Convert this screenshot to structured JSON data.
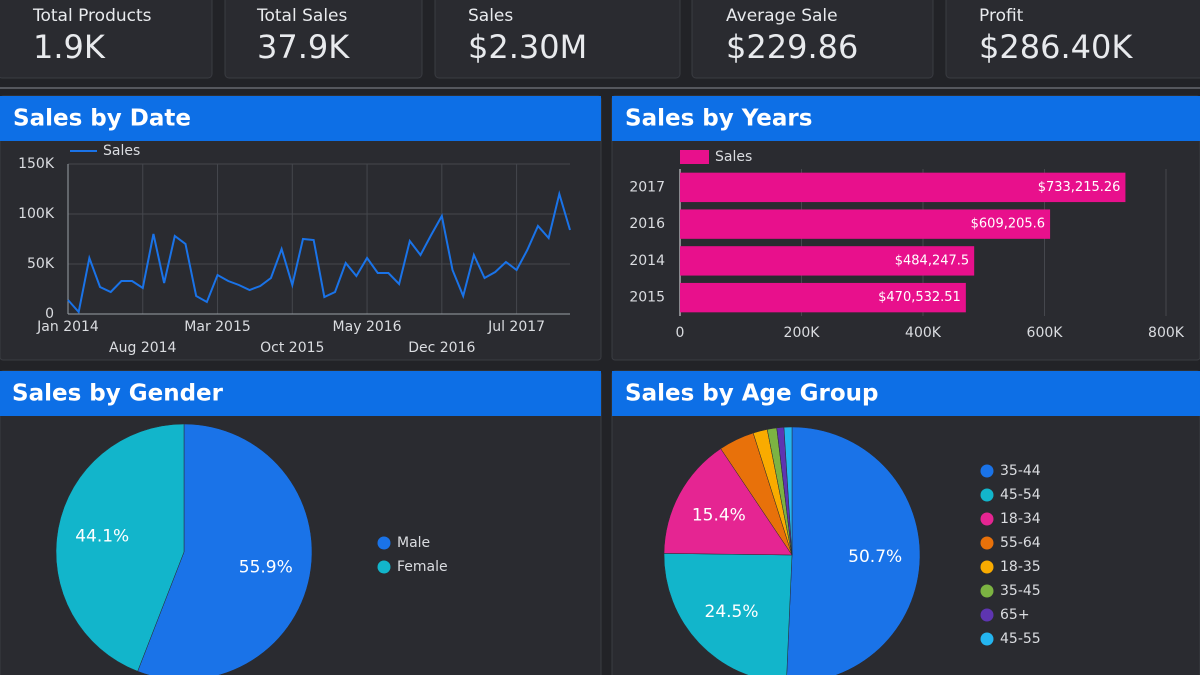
{
  "kpis": [
    {
      "label": "Total Products",
      "value": "1.9K"
    },
    {
      "label": "Total Sales",
      "value": "37.9K"
    },
    {
      "label": "Sales",
      "value": "$2.30M"
    },
    {
      "label": "Average Sale",
      "value": "$229.86"
    },
    {
      "label": "Profit",
      "value": "$286.40K"
    }
  ],
  "chart_data": [
    {
      "type": "line",
      "title": "Sales by Date",
      "categories": [
        "Jan 2014",
        null,
        null,
        null,
        null,
        null,
        null,
        "Aug 2014",
        null,
        null,
        null,
        null,
        null,
        null,
        "Mar 2015",
        null,
        null,
        null,
        null,
        null,
        null,
        "Oct 2015",
        null,
        null,
        null,
        null,
        null,
        null,
        "May 2016",
        null,
        null,
        null,
        null,
        null,
        null,
        "Dec 2016",
        null,
        null,
        null,
        null,
        null,
        null,
        "Jul 2017",
        null,
        null,
        null,
        null,
        null
      ],
      "series": [
        {
          "name": "Sales",
          "color": "#1a73e8",
          "values": [
            14000,
            2000,
            56000,
            27000,
            22000,
            33000,
            33000,
            26000,
            80000,
            31000,
            78000,
            70000,
            18000,
            12000,
            39000,
            33000,
            29000,
            24000,
            28000,
            36000,
            65000,
            29000,
            75000,
            74000,
            17000,
            22000,
            51000,
            38000,
            56000,
            41000,
            41000,
            30000,
            73000,
            59000,
            79000,
            98000,
            44000,
            18000,
            59000,
            36000,
            42000,
            52000,
            44000,
            64000,
            88000,
            76000,
            120000,
            84000
          ]
        }
      ],
      "ylim": [
        0,
        150000
      ],
      "yticks": [
        0,
        {
          "value": 50000,
          "label": "50K"
        },
        {
          "value": 100000,
          "label": "100K"
        },
        {
          "value": 150000,
          "label": "150K"
        }
      ],
      "grid": true,
      "legend": "top"
    },
    {
      "type": "bar",
      "orientation": "horizontal",
      "title": "Sales by Years",
      "categories": [
        "2017",
        "2016",
        "2014",
        "2015"
      ],
      "series": [
        {
          "name": "Sales",
          "color": "#e8108c",
          "values": [
            733215.26,
            609205.6,
            484247.5,
            470532.51
          ],
          "value_labels": [
            "$733,215.26",
            "$609,205.6",
            "$484,247.5",
            "$470,532.51"
          ]
        }
      ],
      "xlim": [
        0,
        800000
      ],
      "xticks": [
        0,
        {
          "value": 200000,
          "label": "200K"
        },
        {
          "value": 400000,
          "label": "400K"
        },
        {
          "value": 600000,
          "label": "600K"
        },
        {
          "value": 800000,
          "label": "800K"
        }
      ],
      "grid": true,
      "legend": "top"
    },
    {
      "type": "pie",
      "title": "Sales by Gender",
      "categories": [
        "Male",
        "Female"
      ],
      "values": [
        55.9,
        44.1
      ],
      "value_labels": [
        "55.9%",
        "44.1%"
      ],
      "colors": [
        "#1a73e8",
        "#12b5cb"
      ],
      "legend": "right"
    },
    {
      "type": "pie",
      "title": "Sales by Age Group",
      "categories": [
        "35-44",
        "45-54",
        "18-34",
        "55-64",
        "18-35",
        "35-45",
        "65+",
        "45-55"
      ],
      "values": [
        50.7,
        24.5,
        15.4,
        4.5,
        1.8,
        1.2,
        0.9,
        1.0
      ],
      "value_labels": [
        "50.7%",
        "24.5%",
        "15.4%",
        null,
        null,
        null,
        null,
        null
      ],
      "colors": [
        "#1a73e8",
        "#12b5cb",
        "#e52592",
        "#e8710a",
        "#f9ab00",
        "#7cb342",
        "#5e35b1",
        "#24b5f0"
      ],
      "legend": "right"
    }
  ]
}
